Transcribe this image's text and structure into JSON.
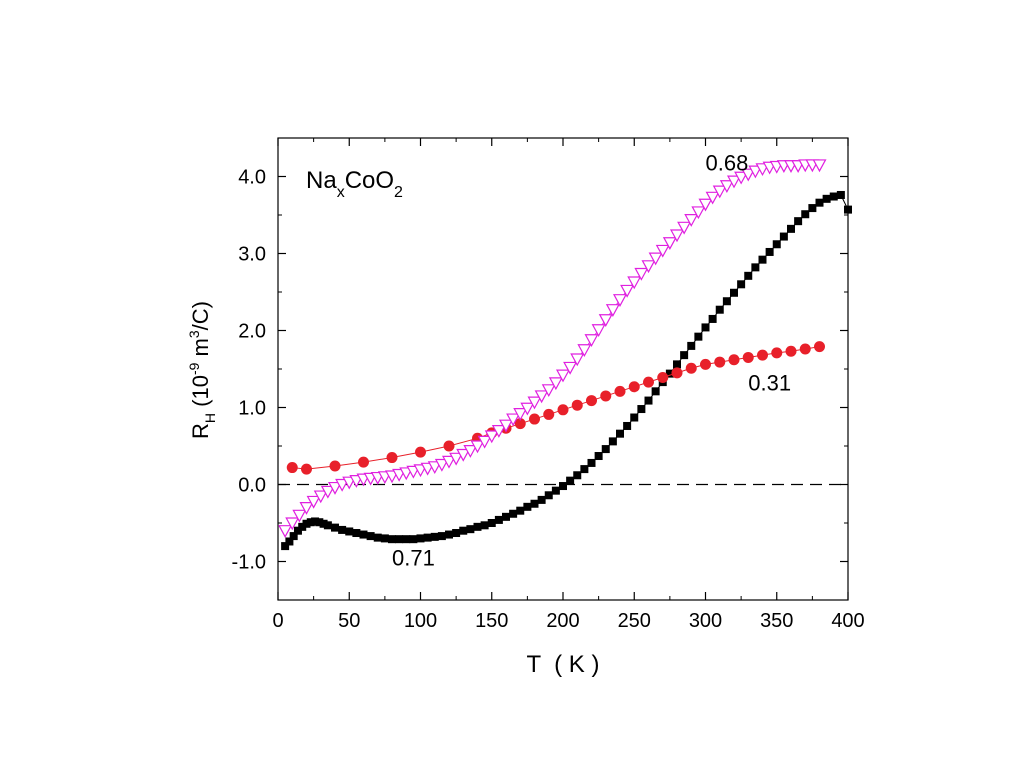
{
  "chart_data": {
    "type": "scatter",
    "formula": {
      "base1": "Na",
      "sub1": "x",
      "base2": "CoO",
      "sub2": "2"
    },
    "xlabel": "T  ( K )",
    "ylabel": {
      "base": "R",
      "sub": "H",
      "rest1": " (10",
      "sup1": "-9",
      "rest2": " m",
      "sup2": "3",
      "rest3": "/C)"
    },
    "xlim": [
      0,
      400
    ],
    "ylim": [
      -1.5,
      4.5
    ],
    "xticks": [
      0,
      50,
      100,
      150,
      200,
      250,
      300,
      350,
      400
    ],
    "yticks": [
      -1.0,
      0.0,
      1.0,
      2.0,
      3.0,
      4.0
    ],
    "xtick_labels": [
      "0",
      "50",
      "100",
      "150",
      "200",
      "250",
      "300",
      "350",
      "400"
    ],
    "ytick_labels": [
      "-1.0",
      "0.0",
      "1.0",
      "2.0",
      "3.0",
      "4.0"
    ],
    "reference_line": {
      "y": 0,
      "style": "dashed"
    },
    "series": [
      {
        "name": "0.71",
        "marker": "square-filled",
        "color": "#000000",
        "x": [
          5,
          8,
          11,
          14,
          17,
          20,
          23,
          26,
          29,
          32,
          35,
          40,
          45,
          50,
          55,
          60,
          65,
          70,
          75,
          80,
          85,
          90,
          95,
          100,
          105,
          110,
          115,
          120,
          125,
          130,
          135,
          140,
          145,
          150,
          155,
          160,
          165,
          170,
          175,
          180,
          185,
          190,
          195,
          200,
          205,
          210,
          215,
          220,
          225,
          230,
          235,
          240,
          245,
          250,
          255,
          260,
          265,
          270,
          275,
          280,
          285,
          290,
          295,
          300,
          305,
          310,
          315,
          320,
          325,
          330,
          335,
          340,
          345,
          350,
          355,
          360,
          365,
          370,
          375,
          380,
          385,
          390,
          395,
          400
        ],
        "y": [
          -0.8,
          -0.74,
          -0.67,
          -0.6,
          -0.55,
          -0.51,
          -0.49,
          -0.48,
          -0.49,
          -0.51,
          -0.53,
          -0.56,
          -0.59,
          -0.61,
          -0.63,
          -0.65,
          -0.67,
          -0.69,
          -0.7,
          -0.71,
          -0.71,
          -0.71,
          -0.71,
          -0.7,
          -0.69,
          -0.68,
          -0.67,
          -0.65,
          -0.63,
          -0.6,
          -0.58,
          -0.55,
          -0.53,
          -0.5,
          -0.46,
          -0.42,
          -0.38,
          -0.34,
          -0.29,
          -0.25,
          -0.2,
          -0.14,
          -0.08,
          -0.02,
          0.05,
          0.12,
          0.2,
          0.28,
          0.37,
          0.46,
          0.56,
          0.66,
          0.76,
          0.87,
          0.98,
          1.09,
          1.21,
          1.33,
          1.44,
          1.56,
          1.68,
          1.8,
          1.92,
          2.04,
          2.15,
          2.27,
          2.38,
          2.49,
          2.6,
          2.71,
          2.82,
          2.92,
          3.02,
          3.12,
          3.22,
          3.32,
          3.42,
          3.51,
          3.59,
          3.66,
          3.71,
          3.74,
          3.76,
          3.57
        ]
      },
      {
        "name": "0.31",
        "marker": "circle-filled",
        "color": "#e8202a",
        "x": [
          10,
          20,
          40,
          60,
          80,
          100,
          120,
          140,
          150,
          160,
          170,
          180,
          190,
          200,
          210,
          220,
          230,
          240,
          250,
          260,
          270,
          280,
          290,
          300,
          310,
          320,
          330,
          340,
          350,
          360,
          370,
          380
        ],
        "y": [
          0.22,
          0.2,
          0.24,
          0.29,
          0.35,
          0.42,
          0.5,
          0.6,
          0.67,
          0.73,
          0.79,
          0.85,
          0.91,
          0.97,
          1.03,
          1.09,
          1.15,
          1.21,
          1.27,
          1.33,
          1.39,
          1.45,
          1.51,
          1.56,
          1.59,
          1.62,
          1.65,
          1.68,
          1.71,
          1.73,
          1.76,
          1.79
        ]
      },
      {
        "name": "0.68",
        "marker": "triangle-down-open",
        "color": "#e020e0",
        "x": [
          5,
          10,
          15,
          20,
          25,
          30,
          35,
          40,
          45,
          50,
          55,
          60,
          65,
          70,
          75,
          80,
          85,
          90,
          95,
          100,
          105,
          110,
          115,
          120,
          125,
          130,
          135,
          140,
          145,
          150,
          155,
          160,
          165,
          170,
          175,
          180,
          185,
          190,
          195,
          200,
          205,
          210,
          215,
          220,
          225,
          230,
          235,
          240,
          245,
          250,
          255,
          260,
          265,
          270,
          275,
          280,
          285,
          290,
          295,
          300,
          305,
          310,
          315,
          320,
          325,
          330,
          335,
          340,
          345,
          350,
          355,
          360,
          365,
          370,
          375,
          380
        ],
        "y": [
          -0.6,
          -0.5,
          -0.4,
          -0.3,
          -0.22,
          -0.15,
          -0.09,
          -0.04,
          0.0,
          0.03,
          0.05,
          0.07,
          0.08,
          0.09,
          0.1,
          0.11,
          0.13,
          0.15,
          0.17,
          0.19,
          0.21,
          0.23,
          0.26,
          0.3,
          0.34,
          0.39,
          0.44,
          0.5,
          0.56,
          0.63,
          0.7,
          0.77,
          0.85,
          0.92,
          0.99,
          1.07,
          1.15,
          1.23,
          1.32,
          1.42,
          1.52,
          1.63,
          1.75,
          1.88,
          2.01,
          2.14,
          2.27,
          2.4,
          2.52,
          2.63,
          2.74,
          2.84,
          2.94,
          3.04,
          3.14,
          3.24,
          3.34,
          3.44,
          3.54,
          3.64,
          3.73,
          3.81,
          3.88,
          3.94,
          3.99,
          4.03,
          4.07,
          4.1,
          4.12,
          4.13,
          4.14,
          4.14,
          4.14,
          4.15,
          4.15,
          4.15
        ]
      }
    ],
    "annotations": [
      {
        "text": "0.68",
        "x": 300,
        "y": 4.08
      },
      {
        "text": "0.31",
        "x": 330,
        "y": 1.22
      },
      {
        "text": "0.71",
        "x": 80,
        "y": -1.05
      }
    ]
  }
}
